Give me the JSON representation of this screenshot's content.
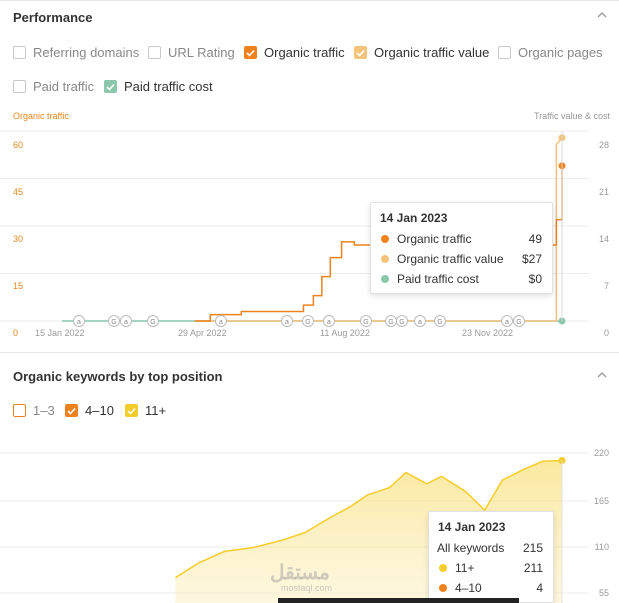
{
  "performance": {
    "title": "Performance",
    "metrics_row1": [
      {
        "label": "Referring domains",
        "checked": false,
        "color": ""
      },
      {
        "label": "URL Rating",
        "checked": false,
        "color": ""
      },
      {
        "label": "Organic traffic",
        "checked": true,
        "color": "#f0821e"
      },
      {
        "label": "Organic traffic value",
        "checked": true,
        "color": "#f5c37b"
      },
      {
        "label": "Organic pages",
        "checked": false,
        "color": ""
      }
    ],
    "metrics_row2": [
      {
        "label": "Paid traffic",
        "checked": false,
        "color": ""
      },
      {
        "label": "Paid traffic cost",
        "checked": true,
        "color": "#8cc7ad"
      }
    ],
    "left_axis_title": "Organic traffic",
    "right_axis_title": "Traffic value & cost",
    "tooltip": {
      "date": "14 Jan 2023",
      "rows": [
        {
          "label": "Organic traffic",
          "value": "49",
          "color": "#f0821e"
        },
        {
          "label": "Organic traffic value",
          "value": "$27",
          "color": "#f5c37b"
        },
        {
          "label": "Paid traffic cost",
          "value": "$0",
          "color": "#8cc7ad"
        }
      ]
    }
  },
  "keywords": {
    "title": "Organic keywords by top position",
    "legend": [
      {
        "label": "1–3",
        "checked": false,
        "color": "#f0821e"
      },
      {
        "label": "4–10",
        "checked": true,
        "color": "#f0821e"
      },
      {
        "label": "11+",
        "checked": true,
        "color": "#f5cd2a"
      }
    ],
    "tooltip": {
      "date": "14 Jan 2023",
      "all_label": "All keywords",
      "all_value": "215",
      "rows": [
        {
          "label": "11+",
          "value": "211",
          "color": "#f5cd2a"
        },
        {
          "label": "4–10",
          "value": "4",
          "color": "#f0821e"
        }
      ]
    }
  },
  "watermark": {
    "text": "مستقل",
    "sub": "mostaql.com"
  },
  "chart_data": [
    {
      "type": "line",
      "title": "",
      "ylabel": "Organic traffic",
      "y2label": "Traffic value & cost",
      "ylim": [
        0,
        60
      ],
      "y2lim": [
        0,
        28
      ],
      "yticks": [
        "0",
        "15",
        "30",
        "45",
        "60"
      ],
      "y2ticks": [
        "0",
        "7",
        "14",
        "21",
        "28"
      ],
      "xticks": [
        "15 Jan 2022",
        "29 Apr 2022",
        "11 Aug 2022",
        "23 Nov 2022"
      ],
      "annotation_markers": [
        "a",
        "G",
        "a",
        "G",
        "a",
        "a",
        "G",
        "a",
        "G",
        "G",
        "G",
        "a",
        "G",
        "a",
        "G",
        "G"
      ],
      "series": [
        {
          "name": "Organic traffic",
          "color": "#f0821e",
          "x": [
            "2022-04-29",
            "2022-05-10",
            "2022-06-01",
            "2022-07-15",
            "2022-07-22",
            "2022-07-28",
            "2022-08-03",
            "2022-08-11",
            "2022-08-20",
            "2022-09-05",
            "2022-09-20",
            "2022-10-15",
            "2022-11-10",
            "2022-12-01",
            "2022-12-20",
            "2023-01-05",
            "2023-01-10",
            "2023-01-14"
          ],
          "values": [
            0,
            2,
            3,
            5,
            8,
            14,
            20,
            25,
            24,
            25,
            24,
            25,
            24,
            23,
            25,
            24,
            32,
            49
          ]
        },
        {
          "name": "Organic traffic value",
          "color": "#f5c37b",
          "x": [
            "2022-01-15",
            "2022-04-29",
            "2022-08-11",
            "2022-11-23",
            "2023-01-10",
            "2023-01-12",
            "2023-01-14"
          ],
          "values": [
            0,
            0,
            0,
            0,
            0,
            27,
            27
          ]
        },
        {
          "name": "Paid traffic cost",
          "color": "#8cc7ad",
          "x": [
            "2022-01-15",
            "2022-04-29",
            "2022-08-11",
            "2022-11-23",
            "2023-01-14"
          ],
          "values": [
            0,
            0,
            0,
            0,
            0
          ]
        }
      ]
    },
    {
      "type": "area",
      "title": "Organic keywords by top position",
      "y2ticks": [
        "55",
        "110",
        "165",
        "220"
      ],
      "series": [
        {
          "name": "11+",
          "color": "#f5cd2a",
          "x": [
            "2022-04-29",
            "2022-05-15",
            "2022-06-01",
            "2022-06-20",
            "2022-07-10",
            "2022-07-25",
            "2022-08-11",
            "2022-08-25",
            "2022-09-05",
            "2022-09-20",
            "2022-10-01",
            "2022-10-15",
            "2022-10-25",
            "2022-11-10",
            "2022-11-23",
            "2022-12-05",
            "2022-12-20",
            "2023-01-01",
            "2023-01-14"
          ],
          "values": [
            55,
            75,
            90,
            95,
            105,
            115,
            135,
            150,
            165,
            175,
            195,
            180,
            190,
            170,
            145,
            185,
            200,
            210,
            211
          ]
        },
        {
          "name": "4–10",
          "color": "#f0821e",
          "x": [
            "2023-01-14"
          ],
          "values": [
            4
          ]
        }
      ]
    }
  ]
}
